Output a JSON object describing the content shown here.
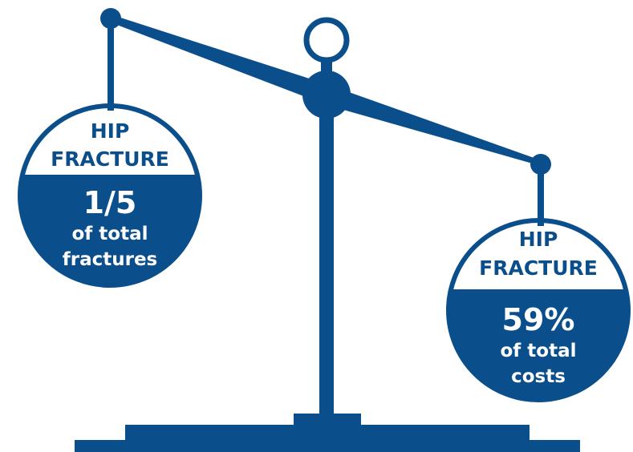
{
  "colors": {
    "primary": "#0a4f8c",
    "background": "#ffffff"
  },
  "left_pan": {
    "title_line1": "HIP",
    "title_line2": "FRACTURE",
    "value": "1/5",
    "desc_line1": "of total",
    "desc_line2": "fractures"
  },
  "right_pan": {
    "title_line1": "HIP",
    "title_line2": "FRACTURE",
    "value": "59%",
    "desc_line1": "of total",
    "desc_line2": "costs"
  }
}
